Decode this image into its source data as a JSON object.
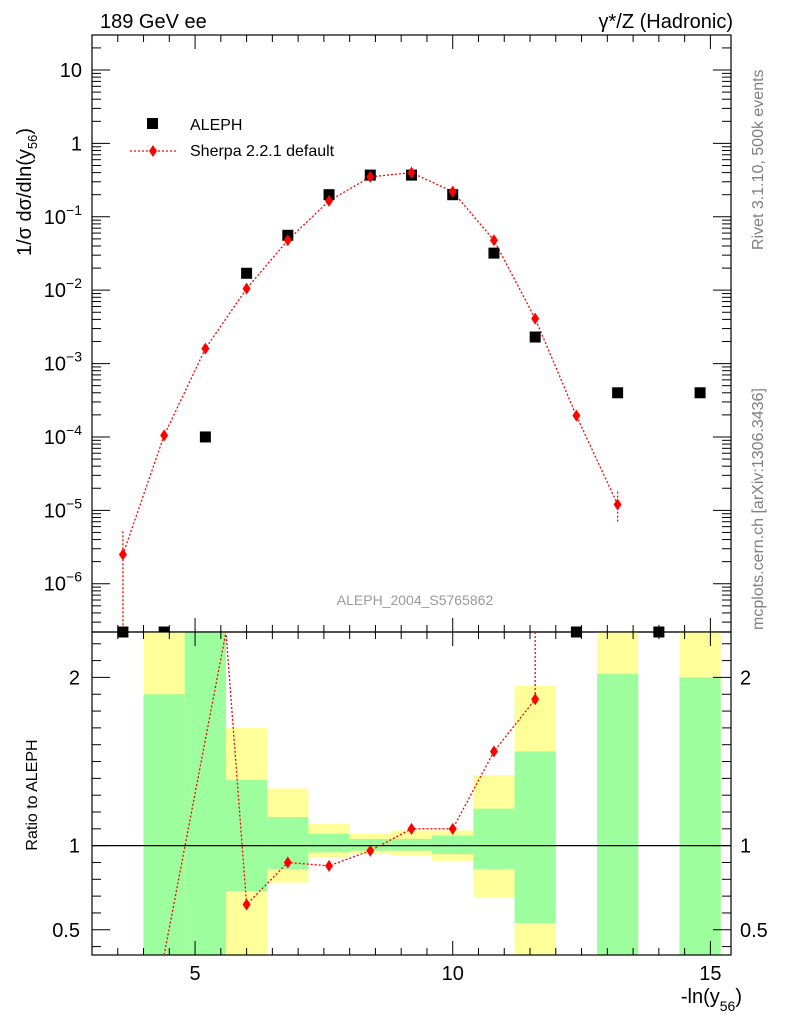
{
  "header": {
    "left": "189 GeV ee",
    "right": "γ*/Z (Hadronic)"
  },
  "side_labels": {
    "rivet": "Rivet 3.1.10,  500k events",
    "mcplots": "mcplots.cern.ch [arXiv:1306.3436]"
  },
  "watermark": "ALEPH_2004_S5765862",
  "colors": {
    "data": "#000000",
    "mc": "#ff0000",
    "band_inner": "#9cfe9c",
    "band_outer": "#ffff99"
  },
  "chart_data": [
    {
      "type": "scatter",
      "panel": "main",
      "ylabel": "1/σ  dσ/dln(y56)",
      "yscale": "log",
      "ylim": [
        2.2e-07,
        30
      ],
      "xlim": [
        3.0,
        15.4
      ],
      "yticks": [
        {
          "v": 1e-06,
          "base": "10",
          "exp": "−6"
        },
        {
          "v": 1e-05,
          "base": "10",
          "exp": "−5"
        },
        {
          "v": 0.0001,
          "base": "10",
          "exp": "−4"
        },
        {
          "v": 0.001,
          "base": "10",
          "exp": "−3"
        },
        {
          "v": 0.01,
          "base": "10",
          "exp": "−2"
        },
        {
          "v": 0.1,
          "base": "10",
          "exp": "−1"
        },
        {
          "v": 1,
          "base": "1",
          "exp": ""
        },
        {
          "v": 10,
          "base": "10",
          "exp": ""
        }
      ],
      "legend_position": "top-left",
      "series": [
        {
          "name": "ALEPH",
          "marker": "square",
          "points": [
            {
              "x": 3.6,
              "y": 2.2e-07
            },
            {
              "x": 4.4,
              "y": 2.2e-07
            },
            {
              "x": 5.2,
              "y": 0.0001
            },
            {
              "x": 6.0,
              "y": 0.017
            },
            {
              "x": 6.8,
              "y": 0.056
            },
            {
              "x": 7.6,
              "y": 0.2
            },
            {
              "x": 8.4,
              "y": 0.37
            },
            {
              "x": 9.2,
              "y": 0.37
            },
            {
              "x": 10.0,
              "y": 0.2
            },
            {
              "x": 10.8,
              "y": 0.032
            },
            {
              "x": 11.6,
              "y": 0.0023
            },
            {
              "x": 12.4,
              "y": 2.2e-07
            },
            {
              "x": 13.2,
              "y": 0.0004
            },
            {
              "x": 14.0,
              "y": 2.2e-07
            },
            {
              "x": 14.8,
              "y": 0.0004
            }
          ]
        },
        {
          "name": "Sherpa 2.2.1 default",
          "marker": "diamond",
          "line": "dotted",
          "points": [
            {
              "x": 3.6,
              "y": 2.5e-06,
              "elo": 2.2e-07,
              "ehi": 5.2e-06
            },
            {
              "x": 4.4,
              "y": 0.000105
            },
            {
              "x": 5.2,
              "y": 0.0016
            },
            {
              "x": 6.0,
              "y": 0.0105
            },
            {
              "x": 6.8,
              "y": 0.048
            },
            {
              "x": 7.6,
              "y": 0.165
            },
            {
              "x": 8.4,
              "y": 0.35
            },
            {
              "x": 9.2,
              "y": 0.4
            },
            {
              "x": 10.0,
              "y": 0.22
            },
            {
              "x": 10.8,
              "y": 0.048
            },
            {
              "x": 11.6,
              "y": 0.0041
            },
            {
              "x": 12.4,
              "y": 0.000195
            },
            {
              "x": 13.2,
              "y": 1.2e-05,
              "elo": 7e-06,
              "ehi": 1.8e-05
            }
          ]
        }
      ]
    },
    {
      "type": "line",
      "panel": "ratio",
      "ylabel": "Ratio to ALEPH",
      "xlabel": "-ln(y56)",
      "ylim": [
        0.35,
        2.27
      ],
      "xlim": [
        3.0,
        15.4
      ],
      "xticks": [
        5,
        10,
        15
      ],
      "yticks": [
        0.5,
        1,
        2
      ],
      "bands": [
        {
          "x0": 4.0,
          "x1": 4.8,
          "inner": [
            0.0,
            1.9
          ],
          "outer": [
            0.0,
            3.0
          ]
        },
        {
          "x0": 4.8,
          "x1": 5.6,
          "inner": [
            0.0,
            3.0
          ],
          "outer": [
            0.0,
            3.0
          ]
        },
        {
          "x0": 5.6,
          "x1": 6.4,
          "inner": [
            0.73,
            1.39
          ],
          "outer": [
            0.0,
            1.7
          ]
        },
        {
          "x0": 6.4,
          "x1": 7.2,
          "inner": [
            0.86,
            1.17
          ],
          "outer": [
            0.78,
            1.34
          ]
        },
        {
          "x0": 7.2,
          "x1": 8.0,
          "inner": [
            0.96,
            1.07
          ],
          "outer": [
            0.93,
            1.13
          ]
        },
        {
          "x0": 8.0,
          "x1": 8.8,
          "inner": [
            0.97,
            1.04
          ],
          "outer": [
            0.95,
            1.07
          ]
        },
        {
          "x0": 8.8,
          "x1": 9.6,
          "inner": [
            0.97,
            1.04
          ],
          "outer": [
            0.94,
            1.09
          ]
        },
        {
          "x0": 9.6,
          "x1": 10.4,
          "inner": [
            0.95,
            1.06
          ],
          "outer": [
            0.91,
            1.09
          ]
        },
        {
          "x0": 10.4,
          "x1": 11.2,
          "inner": [
            0.86,
            1.22
          ],
          "outer": [
            0.69,
            1.42
          ]
        },
        {
          "x0": 11.2,
          "x1": 12.0,
          "inner": [
            0.54,
            1.56
          ],
          "outer": [
            0.0,
            1.95
          ]
        },
        {
          "x0": 12.8,
          "x1": 13.6,
          "inner": [
            0.0,
            2.02
          ],
          "outer": [
            0.0,
            3.0
          ]
        },
        {
          "x0": 14.4,
          "x1": 15.2,
          "inner": [
            0.0,
            2.0
          ],
          "outer": [
            0.0,
            3.0
          ]
        }
      ],
      "series": [
        {
          "name": "Sherpa 2.2.1 default",
          "points": [
            {
              "x": 4.4,
              "y": 0.1
            },
            {
              "x": 5.6,
              "y": 3.0
            },
            {
              "x": 6.0,
              "y": 0.65
            },
            {
              "x": 6.8,
              "y": 0.9
            },
            {
              "x": 7.6,
              "y": 0.88
            },
            {
              "x": 8.4,
              "y": 0.97
            },
            {
              "x": 9.2,
              "y": 1.1
            },
            {
              "x": 10.0,
              "y": 1.1
            },
            {
              "x": 10.8,
              "y": 1.56
            },
            {
              "x": 11.6,
              "y": 1.87
            }
          ]
        }
      ]
    }
  ]
}
